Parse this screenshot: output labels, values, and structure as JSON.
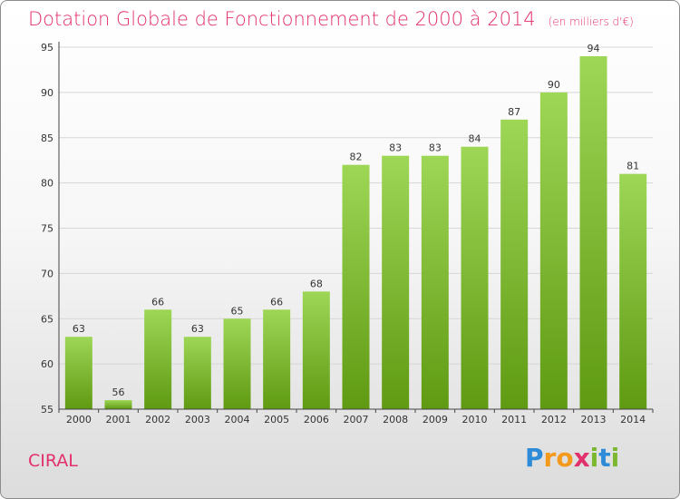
{
  "title": "Dotation Globale de Fonctionnement de 2000 à 2014",
  "unit": "(en milliers d'€)",
  "commune": "CIRAL",
  "logo": {
    "text": "Proxiti",
    "colors": [
      "#2e8bd8",
      "#f39a1d",
      "#f39a1d",
      "#e2306c",
      "#7cb82f",
      "#2e8bd8",
      "#7cb82f"
    ]
  },
  "colors": {
    "accent": "#e2306c",
    "bar_light": "#9ed656",
    "bar_dark": "#5f9a12",
    "grid": "#d6d6d6"
  },
  "chart_data": {
    "type": "bar",
    "categories": [
      "2000",
      "2001",
      "2002",
      "2003",
      "2004",
      "2005",
      "2006",
      "2007",
      "2008",
      "2009",
      "2010",
      "2011",
      "2012",
      "2013",
      "2014"
    ],
    "values": [
      63,
      56,
      66,
      63,
      65,
      66,
      68,
      82,
      83,
      83,
      84,
      87,
      90,
      94,
      81
    ],
    "ylim": [
      55,
      95
    ],
    "yticks": [
      55,
      60,
      65,
      70,
      75,
      80,
      85,
      90,
      95
    ],
    "grid": true
  }
}
